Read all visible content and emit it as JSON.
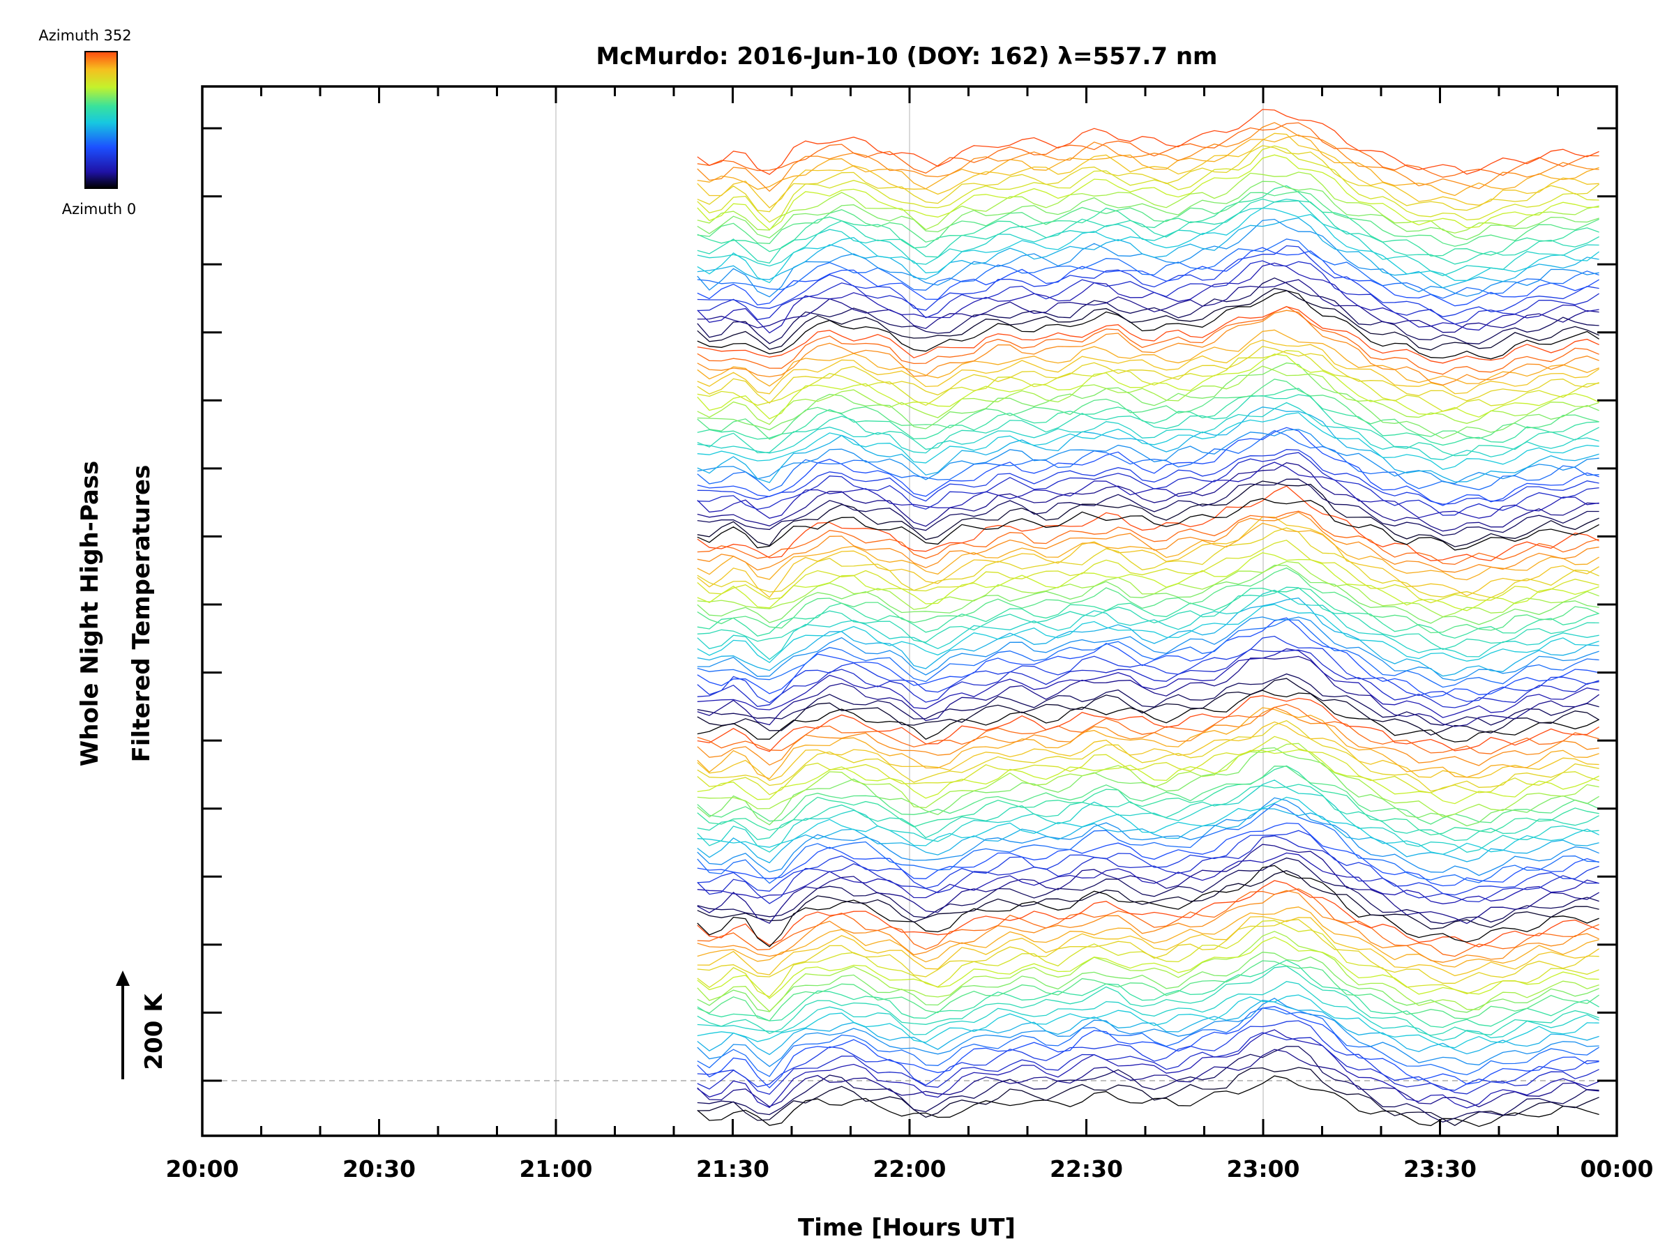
{
  "chart_data": {
    "type": "line",
    "title": "McMurdo: 2016-Jun-10 (DOY: 162) λ=557.7 nm",
    "xlabel": "Time [Hours UT]",
    "ylabel_line1": "Whole Night High-Pass",
    "ylabel_line2": "Filtered Temperatures",
    "scale_label": "200 K",
    "xlim": [
      20.0,
      24.0
    ],
    "x_tick_labels": [
      "20:00",
      "20:30",
      "21:00",
      "21:30",
      "22:00",
      "22:30",
      "23:00",
      "23:30",
      "00:00"
    ],
    "x_tick_values": [
      20.0,
      20.5,
      21.0,
      21.5,
      22.0,
      22.5,
      23.0,
      23.5,
      24.0
    ],
    "y_major_ticks": 15,
    "gridlines_x": [
      21.0,
      22.0,
      23.0
    ],
    "baseline_dashed": true,
    "data_start_hour": 21.4,
    "data_end_hour": 23.95,
    "n_series": 130,
    "colorbar": {
      "label_top": "Azimuth 352",
      "label_bottom": "Azimuth 0",
      "colormap": [
        "#000000",
        "#1f12a6",
        "#1c50ff",
        "#17c8e0",
        "#39e29c",
        "#c4f22c",
        "#f6bf1f",
        "#ff4a10"
      ]
    },
    "common_signal_note": "Stacked per-azimuth temperature series offset vertically; shared wave features peak near 23:05 and dip near 21:40 and 22:05."
  }
}
